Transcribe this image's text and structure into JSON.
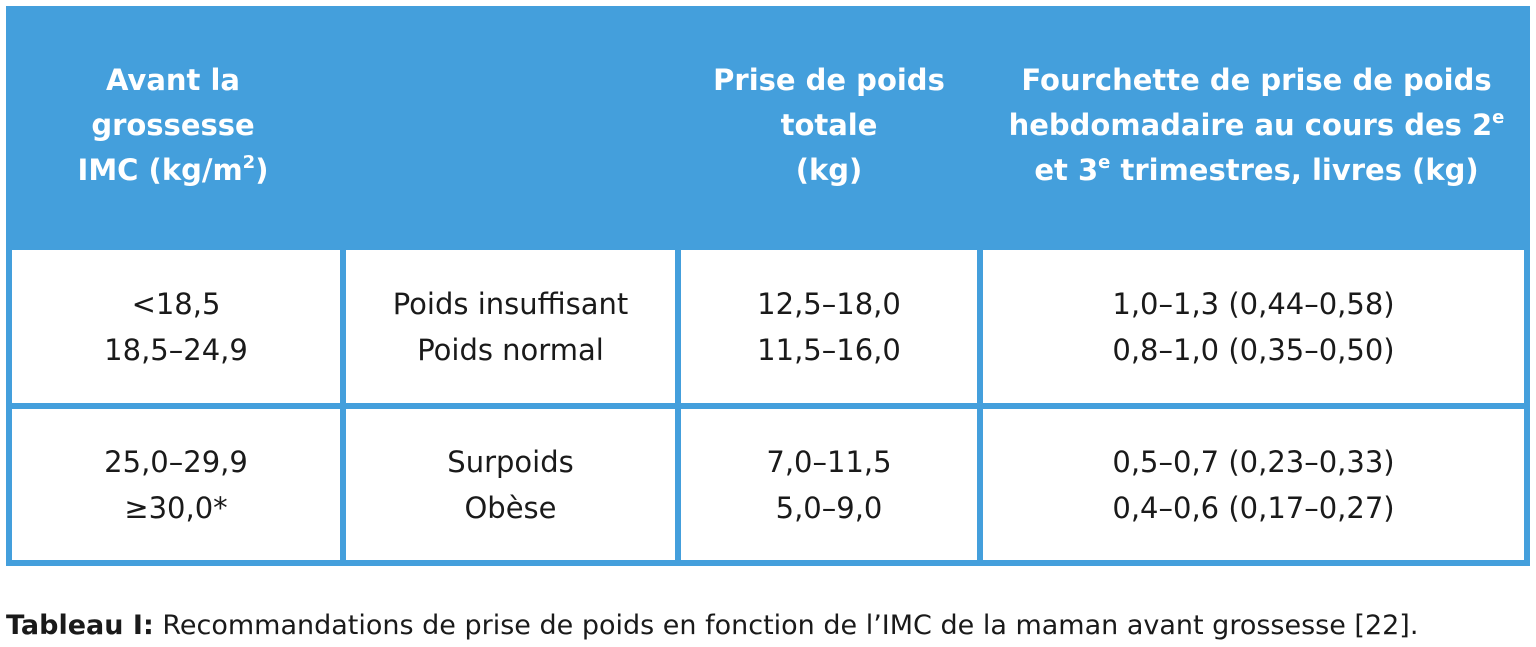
{
  "header": {
    "col1": [
      "Avant la",
      "grossesse",
      "IMC (kg/m",
      "2",
      ")"
    ],
    "col2": "",
    "col3": [
      "Prise de poids",
      "totale",
      "(kg)"
    ],
    "col4": [
      "Fourchette de prise de poids",
      "hebdomadaire au cours des 2",
      "e",
      "et 3",
      "e",
      " trimestres, livres (kg)"
    ]
  },
  "rows": [
    {
      "imc": [
        "<18,5",
        "18,5–24,9"
      ],
      "category": [
        "Poids insuffisant",
        "Poids normal"
      ],
      "total": [
        "12,5–18,0",
        "11,5–16,0"
      ],
      "weekly": [
        "1,0–1,3 (0,44–0,58)",
        "0,8–1,0 (0,35–0,50)"
      ]
    },
    {
      "imc": [
        "25,0–29,9",
        "≥30,0*"
      ],
      "category": [
        "Surpoids",
        "Obèse"
      ],
      "total": [
        "7,0–11,5",
        "5,0–9,0"
      ],
      "weekly": [
        "0,5–0,7 (0,23–0,33)",
        "0,4–0,6 (0,17–0,27)"
      ]
    }
  ],
  "caption": {
    "label": "Tableau I:",
    "text": " Recommandations de prise de poids en fonction de l’IMC de la maman avant grossesse [22]."
  },
  "colors": {
    "header_bg": "#449fdc",
    "grid": "#449fdc",
    "cell_bg": "#ffffff"
  }
}
